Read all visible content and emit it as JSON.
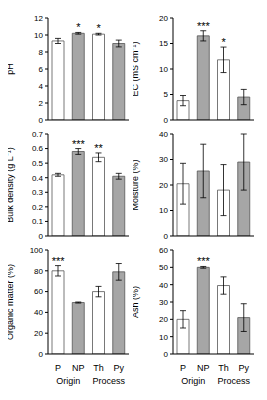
{
  "chart_data": [
    {
      "type": "bar",
      "y_label": "pH",
      "categories": [
        "P",
        "NP",
        "Th",
        "Py"
      ],
      "values": [
        9.3,
        10.2,
        10.1,
        9.0
      ],
      "errors": [
        0.3,
        0.1,
        0.1,
        0.4
      ],
      "colors": [
        "#ffffff",
        "#a6a6a6",
        "#ffffff",
        "#a6a6a6"
      ],
      "ylim": [
        0,
        12
      ],
      "yticks": [
        0,
        2,
        4,
        6,
        8,
        10,
        12
      ],
      "grid": false,
      "tick_labels": "y",
      "annotations": [
        {
          "text": "*",
          "between": [
            "P",
            "NP"
          ]
        },
        {
          "text": "*",
          "between": [
            "Th",
            "Py"
          ]
        }
      ]
    },
    {
      "type": "bar",
      "y_label": "EC (mS cm⁻¹)",
      "categories": [
        "P",
        "NP",
        "Th",
        "Py"
      ],
      "values": [
        3.8,
        16.5,
        11.8,
        4.5
      ],
      "errors": [
        1.0,
        1.0,
        2.5,
        1.5
      ],
      "colors": [
        "#ffffff",
        "#a6a6a6",
        "#ffffff",
        "#a6a6a6"
      ],
      "ylim": [
        0,
        20
      ],
      "yticks": [
        0,
        5,
        10,
        15,
        20
      ],
      "grid": false,
      "tick_labels": "y",
      "annotations": [
        {
          "text": "***",
          "between": [
            "P",
            "NP"
          ]
        },
        {
          "text": "*",
          "between": [
            "Th",
            "Py"
          ]
        }
      ]
    },
    {
      "type": "bar",
      "y_label": "Bulk density (g L⁻¹)",
      "categories": [
        "P",
        "NP",
        "Th",
        "Py"
      ],
      "values": [
        0.42,
        0.58,
        0.54,
        0.41
      ],
      "errors": [
        0.01,
        0.02,
        0.03,
        0.02
      ],
      "colors": [
        "#ffffff",
        "#a6a6a6",
        "#ffffff",
        "#a6a6a6"
      ],
      "ylim": [
        0,
        0.7
      ],
      "yticks": [
        0,
        0.1,
        0.2,
        0.3,
        0.4,
        0.5,
        0.6,
        0.7
      ],
      "grid": false,
      "tick_labels": "y",
      "annotations": [
        {
          "text": "***",
          "between": [
            "P",
            "NP"
          ]
        },
        {
          "text": "**",
          "between": [
            "Th",
            "Py"
          ]
        }
      ]
    },
    {
      "type": "bar",
      "y_label": "Moisture (%)",
      "categories": [
        "P",
        "NP",
        "Th",
        "Py"
      ],
      "values": [
        20.5,
        25.5,
        18,
        29
      ],
      "errors": [
        8,
        10.5,
        10,
        11
      ],
      "colors": [
        "#ffffff",
        "#a6a6a6",
        "#ffffff",
        "#a6a6a6"
      ],
      "ylim": [
        0,
        40
      ],
      "yticks": [
        0,
        10,
        20,
        30,
        40
      ],
      "grid": false,
      "tick_labels": "y",
      "annotations": []
    },
    {
      "type": "bar",
      "y_label": "Organic matter (%)",
      "categories": [
        "P",
        "NP",
        "Th",
        "Py"
      ],
      "values": [
        80,
        49.5,
        60,
        79
      ],
      "errors": [
        5,
        0.5,
        5,
        8
      ],
      "colors": [
        "#ffffff",
        "#a6a6a6",
        "#ffffff",
        "#a6a6a6"
      ],
      "ylim": [
        0,
        100
      ],
      "yticks": [
        0,
        20,
        40,
        60,
        80,
        100
      ],
      "grid": false,
      "annotations": [
        {
          "text": "***",
          "between": [
            "P",
            "NP"
          ]
        }
      ],
      "x_groups": [
        {
          "label": "Origin",
          "categories": [
            "P",
            "NP"
          ]
        },
        {
          "label": "Process",
          "categories": [
            "Th",
            "Py"
          ]
        }
      ]
    },
    {
      "type": "bar",
      "y_label": "Ash (%)",
      "categories": [
        "P",
        "NP",
        "Th",
        "Py"
      ],
      "values": [
        20,
        50,
        39.5,
        21
      ],
      "errors": [
        5,
        0.5,
        5,
        8
      ],
      "colors": [
        "#ffffff",
        "#a6a6a6",
        "#ffffff",
        "#a6a6a6"
      ],
      "ylim": [
        0,
        60
      ],
      "yticks": [
        0,
        10,
        20,
        30,
        40,
        50,
        60
      ],
      "grid": false,
      "annotations": [
        {
          "text": "***",
          "between": [
            "P",
            "NP"
          ]
        }
      ],
      "x_groups": [
        {
          "label": "Origin",
          "categories": [
            "P",
            "NP"
          ]
        },
        {
          "label": "Process",
          "categories": [
            "Th",
            "Py"
          ]
        }
      ]
    }
  ]
}
